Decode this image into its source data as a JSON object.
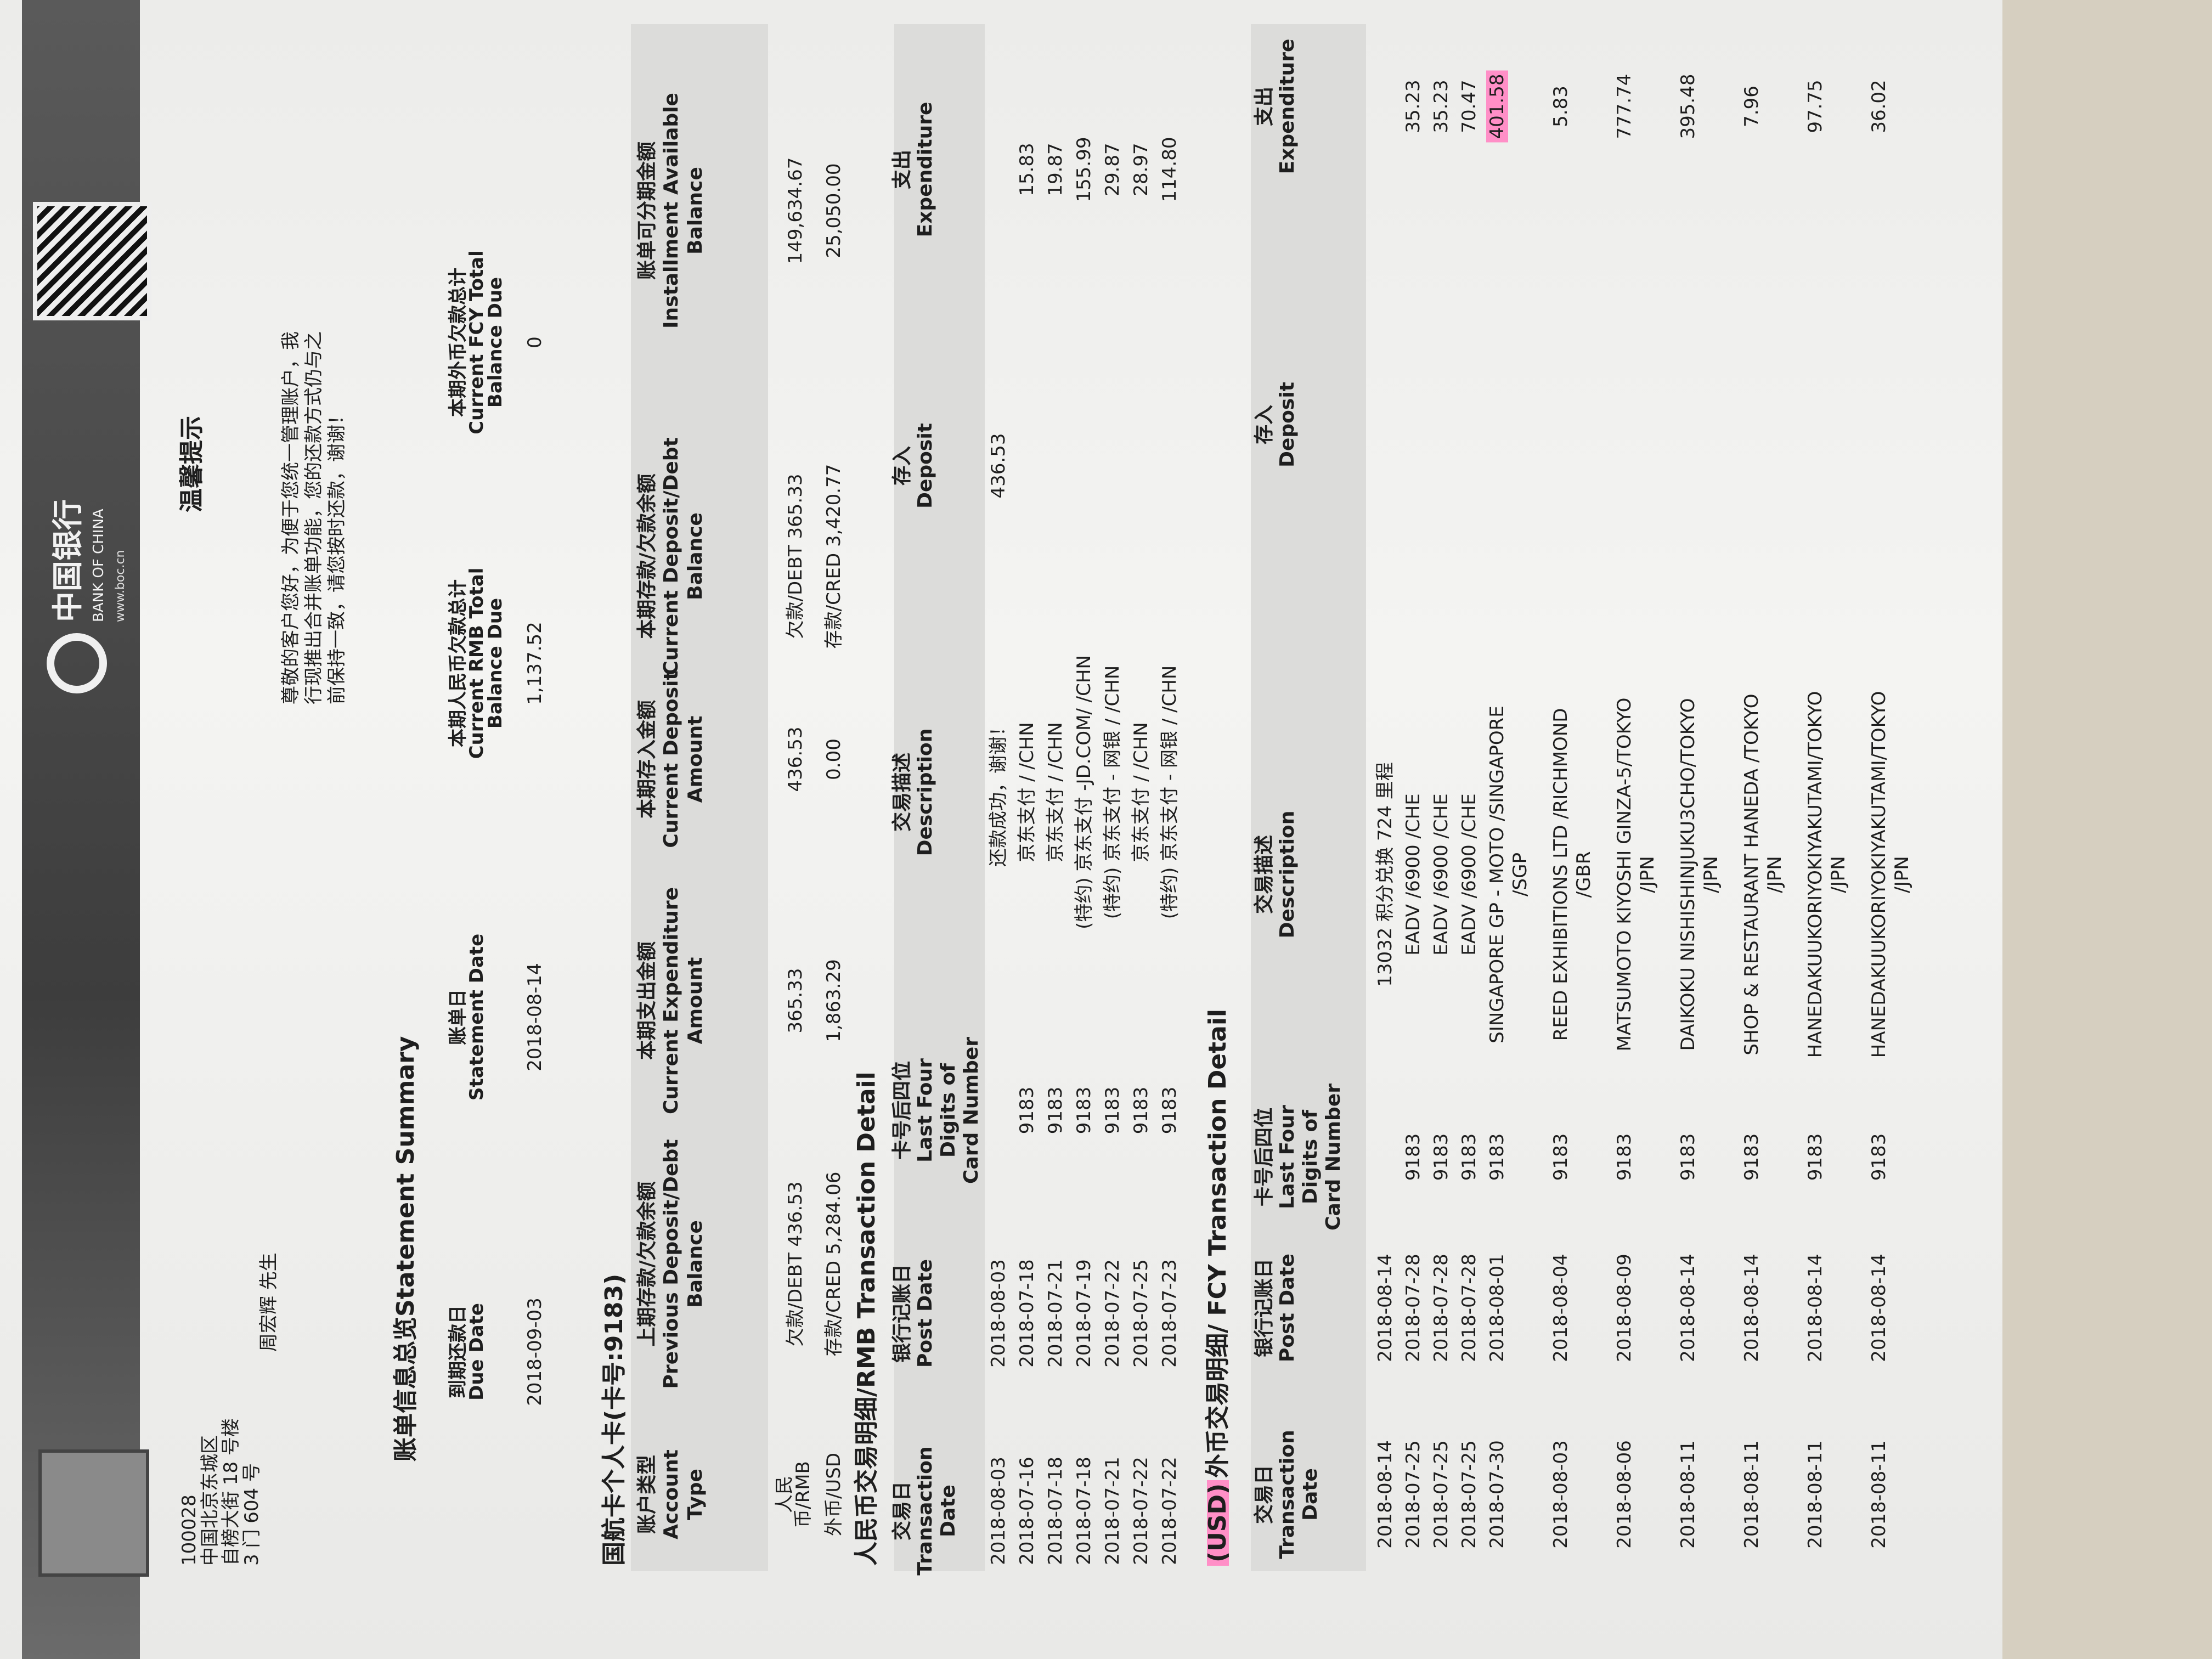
{
  "header": {
    "bank_name_cn": "中国银行",
    "bank_name_en": "BANK OF CHINA",
    "website": "www.boc.cn",
    "address": [
      "100028",
      "中国北京东城区",
      "自榜大街 18 号楼",
      "3 门 604 号"
    ],
    "recipient": "周宏辉 先生"
  },
  "notice": {
    "title": "温馨提示",
    "text": [
      "尊敬的客户您好，为便于您统一管理账户，我",
      "行现推出合并账单功能，您的还款方式仍与之",
      "前保持一致，请您按时还款，谢谢！"
    ]
  },
  "summary": {
    "title": "账单信息总览Statement Summary",
    "columns": [
      [
        "到期还款日",
        "Due Date"
      ],
      [
        "账单日",
        "Statement Date"
      ],
      [
        "本期人民币欠款总计",
        "Current RMB Total",
        "Balance Due"
      ],
      [
        "本期外币欠款总计",
        "Current FCY Total",
        "Balance Due"
      ]
    ],
    "values": [
      "2018-09-03",
      "2018-08-14",
      "1,137.52",
      "0"
    ]
  },
  "account": {
    "title": "国航卡个人卡(卡号:9183)",
    "columns": [
      [
        "账户类型",
        "Account",
        "Type"
      ],
      [
        "上期存款/欠款余额",
        "Previous Deposit/Debt",
        "Balance"
      ],
      [
        "本期支出金额",
        "Current Expenditure",
        "Amount"
      ],
      [
        "本期存入金额",
        "Current Deposit",
        "Amount"
      ],
      [
        "本期存款/欠款余额",
        "Current Deposit/Debt",
        "Balance"
      ],
      [
        "账单可分期金额",
        "Installment Available",
        "Balance"
      ]
    ],
    "rows": [
      [
        [
          "人民",
          "币/RMB"
        ],
        "欠款/DEBT 436.53",
        "365.33",
        "436.53",
        "欠款/DEBT 365.33",
        "149,634.67"
      ],
      [
        [
          "外币/USD"
        ],
        "存款/CRED 5,284.06",
        "1,863.29",
        "0.00",
        "存款/CRED 3,420.77",
        "25,050.00"
      ]
    ]
  },
  "rmb": {
    "title": "人民币交易明细/RMB Transaction Detail",
    "columns": [
      [
        "交易日",
        "Transaction",
        "Date"
      ],
      [
        "银行记账日",
        "Post Date"
      ],
      [
        "卡号后四位",
        "Last Four",
        "Digits of",
        "Card Number"
      ],
      [
        "交易描述",
        "Description"
      ],
      [
        "存入",
        "Deposit"
      ],
      [
        "支出",
        "Expenditure"
      ]
    ],
    "rows": [
      [
        "2018-08-03",
        "2018-08-03",
        null,
        [
          "还款成功，谢谢！"
        ],
        "436.53",
        null
      ],
      [
        "2018-07-16",
        "2018-07-18",
        "9183",
        [
          "京东支付 / /CHN"
        ],
        null,
        "15.83"
      ],
      [
        "2018-07-18",
        "2018-07-21",
        "9183",
        [
          "京东支付 / /CHN"
        ],
        null,
        "19.87"
      ],
      [
        "2018-07-18",
        "2018-07-19",
        "9183",
        [
          "(特约) 京东支付 -JD.COM/ /CHN"
        ],
        null,
        "155.99"
      ],
      [
        "2018-07-21",
        "2018-07-22",
        "9183",
        [
          "(特约) 京东支付 - 网银 / /CHN"
        ],
        null,
        "29.87"
      ],
      [
        "2018-07-22",
        "2018-07-25",
        "9183",
        [
          "京东支付 / /CHN"
        ],
        null,
        "28.97"
      ],
      [
        "2018-07-22",
        "2018-07-23",
        "9183",
        [
          "(特约) 京东支付 - 网银 / /CHN"
        ],
        null,
        "114.80"
      ]
    ]
  },
  "fcy": {
    "title_prefix": "(USD)",
    "title": "外币交易明细/ FCY Transaction Detail",
    "columns": [
      [
        "交易日",
        "Transaction",
        "Date"
      ],
      [
        "银行记账日",
        "Post Date"
      ],
      [
        "卡号后四位",
        "Last Four",
        "Digits of",
        "Card Number"
      ],
      [
        "交易描述",
        "Description"
      ],
      [
        "存入",
        "Deposit"
      ],
      [
        "支出",
        "Expenditure"
      ]
    ],
    "rows": [
      [
        "2018-08-14",
        "2018-08-14",
        null,
        [
          "13032 积分兑换 724 里程"
        ],
        null,
        null
      ],
      [
        "2018-07-25",
        "2018-07-28",
        "9183",
        [
          "EADV /6900 /CHE"
        ],
        null,
        "35.23"
      ],
      [
        "2018-07-25",
        "2018-07-28",
        "9183",
        [
          "EADV /6900 /CHE"
        ],
        null,
        "35.23"
      ],
      [
        "2018-07-25",
        "2018-07-28",
        "9183",
        [
          "EADV /6900 /CHE"
        ],
        null,
        "70.47"
      ],
      [
        "2018-07-30",
        "2018-08-01",
        "9183",
        [
          "SINGAPORE GP - MOTO /SINGAPORE",
          "/SGP"
        ],
        null,
        "401.58"
      ],
      [
        "2018-08-03",
        "2018-08-04",
        "9183",
        [
          "REED EXHIBITIONS LTD /RICHMOND",
          "/GBR"
        ],
        null,
        "5.83"
      ],
      [
        "2018-08-06",
        "2018-08-09",
        "9183",
        [
          "MATSUMOTO KIYOSHI GINZA-5/TOKYO",
          "/JPN"
        ],
        null,
        "777.74"
      ],
      [
        "2018-08-11",
        "2018-08-14",
        "9183",
        [
          "DAIKOKU NISHISHINJUKU3CHO/TOKYO",
          "/JPN"
        ],
        null,
        "395.48"
      ],
      [
        "2018-08-11",
        "2018-08-14",
        "9183",
        [
          "SHOP & RESTAURANT HANEDA /TOKYO",
          "/JPN"
        ],
        null,
        "7.96"
      ],
      [
        "2018-08-11",
        "2018-08-14",
        "9183",
        [
          "HANEDAKUUKORIYOKIYAKUTAMI/TOKYO",
          "/JPN"
        ],
        null,
        "97.75"
      ],
      [
        "2018-08-11",
        "2018-08-14",
        "9183",
        [
          "HANEDAKUUKORIYOKIYAKUTAMI/TOKYO",
          "/JPN"
        ],
        null,
        "36.02"
      ]
    ],
    "highlighted_row": 4
  }
}
